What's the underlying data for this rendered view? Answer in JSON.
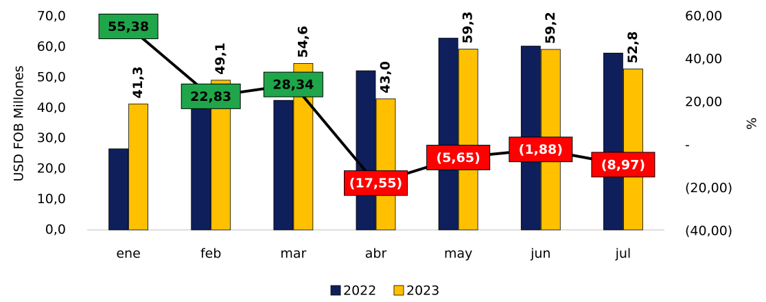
{
  "chart_data": {
    "type": "bar",
    "y_label": "USD FOB Millones",
    "y2_label": "%",
    "categories": [
      "ene",
      "feb",
      "mar",
      "abr",
      "may",
      "jun",
      "jul"
    ],
    "series": [
      {
        "name": "2022",
        "color": "#0f1f5c",
        "values": [
          26.6,
          40.0,
          42.5,
          52.2,
          62.9,
          60.3,
          58.0
        ]
      },
      {
        "name": "2023",
        "color": "#ffc000",
        "values": [
          41.3,
          49.1,
          54.6,
          43.0,
          59.3,
          59.2,
          52.8
        ],
        "value_labels": [
          "41,3",
          "49,1",
          "54,6",
          "43,0",
          "59,3",
          "59,2",
          "52,8"
        ]
      },
      {
        "type": "line",
        "axis": "y2",
        "color": "#000000",
        "positive_color": "#1fa64a",
        "negative_color": "#ff0000",
        "values": [
          55.38,
          22.83,
          28.34,
          -17.55,
          -5.65,
          -1.88,
          -8.97
        ],
        "value_labels": [
          "55,38",
          "22,83",
          "28,34",
          "(17,55)",
          "(5,65)",
          "(1,88)",
          "(8,97)"
        ]
      }
    ],
    "ylim": [
      0,
      70
    ],
    "yticks": [
      {
        "value": 0,
        "label": "0,0"
      },
      {
        "value": 10,
        "label": "10,0"
      },
      {
        "value": 20,
        "label": "20,0"
      },
      {
        "value": 30,
        "label": "30,0"
      },
      {
        "value": 40,
        "label": "40,0"
      },
      {
        "value": 50,
        "label": "50,0"
      },
      {
        "value": 60,
        "label": "60,0"
      },
      {
        "value": 70,
        "label": "70,0"
      }
    ],
    "y2lim": [
      -40,
      60
    ],
    "y2ticks": [
      {
        "value": -40,
        "label": "(40,00)"
      },
      {
        "value": -20,
        "label": "(20,00)"
      },
      {
        "value": 0,
        "label": "-"
      },
      {
        "value": 20,
        "label": "20,00"
      },
      {
        "value": 40,
        "label": "40,00"
      },
      {
        "value": 60,
        "label": "60,00"
      }
    ],
    "legend": "bottom"
  }
}
